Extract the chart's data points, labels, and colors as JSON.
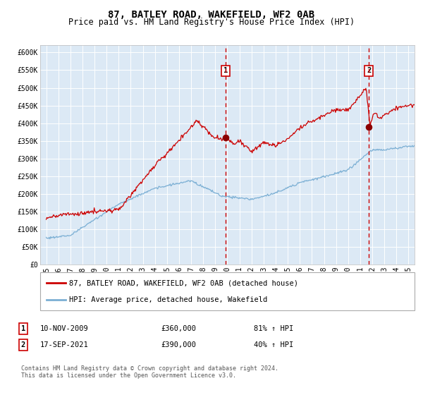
{
  "title": "87, BATLEY ROAD, WAKEFIELD, WF2 0AB",
  "subtitle": "Price paid vs. HM Land Registry's House Price Index (HPI)",
  "hpi_label": "HPI: Average price, detached house, Wakefield",
  "price_label": "87, BATLEY ROAD, WAKEFIELD, WF2 0AB (detached house)",
  "footnote": "Contains HM Land Registry data © Crown copyright and database right 2024.\nThis data is licensed under the Open Government Licence v3.0.",
  "sale1_year": 2009.86,
  "sale2_year": 2021.71,
  "sale1_price": 360000,
  "sale2_price": 390000,
  "ylim": [
    0,
    620000
  ],
  "xlim_start": 1994.5,
  "xlim_end": 2025.5,
  "plot_bg": "#dce9f5",
  "grid_color": "#ffffff",
  "red_line_color": "#cc0000",
  "blue_line_color": "#7bafd4",
  "sale_dot_color": "#8b0000",
  "vline_color": "#cc0000",
  "box_edge_color": "#cc0000",
  "title_fontsize": 10,
  "subtitle_fontsize": 8.5,
  "tick_fontsize": 7,
  "legend_fontsize": 7.5,
  "annotation_fontsize": 7.5,
  "footnote_fontsize": 6,
  "yticks": [
    0,
    50000,
    100000,
    150000,
    200000,
    250000,
    300000,
    350000,
    400000,
    450000,
    500000,
    550000,
    600000
  ],
  "ytick_labels": [
    "£0",
    "£50K",
    "£100K",
    "£150K",
    "£200K",
    "£250K",
    "£300K",
    "£350K",
    "£400K",
    "£450K",
    "£500K",
    "£550K",
    "£600K"
  ],
  "xtick_years": [
    1995,
    1996,
    1997,
    1998,
    1999,
    2000,
    2001,
    2002,
    2003,
    2004,
    2005,
    2006,
    2007,
    2008,
    2009,
    2010,
    2011,
    2012,
    2013,
    2014,
    2015,
    2016,
    2017,
    2018,
    2019,
    2020,
    2021,
    2022,
    2023,
    2024,
    2025
  ],
  "sale_rows": [
    {
      "label": "1",
      "date": "10-NOV-2009",
      "price": "£360,000",
      "pct": "81% ↑ HPI"
    },
    {
      "label": "2",
      "date": "17-SEP-2021",
      "price": "£390,000",
      "pct": "40% ↑ HPI"
    }
  ]
}
